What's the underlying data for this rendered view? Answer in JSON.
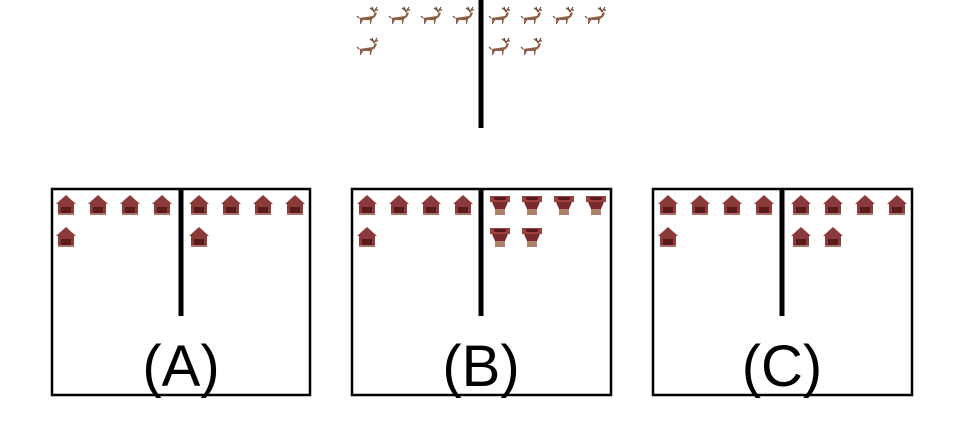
{
  "top_diagram": {
    "left_side": {
      "icon": "deer-icon",
      "count": 5
    },
    "right_side": {
      "icon": "deer-icon",
      "count": 6
    }
  },
  "options": [
    {
      "label": "(A)",
      "left_side": {
        "icon": "house-icon",
        "count": 5
      },
      "right_side": {
        "icon": "house-icon",
        "count": 5
      }
    },
    {
      "label": "(B)",
      "left_side": {
        "icon": "house-icon",
        "count": 5
      },
      "right_side": {
        "icon": "vase-icon",
        "count": 6
      }
    },
    {
      "label": "(C)",
      "left_side": {
        "icon": "house-icon",
        "count": 5
      },
      "right_side": {
        "icon": "house-icon",
        "count": 6
      }
    }
  ],
  "colors": {
    "line": "#000000",
    "deer": "#8a6048",
    "house": "#8b3a3a",
    "house_door": "#5a1a1a",
    "vase": "#9a3f3f",
    "vase_base": "#b0806a"
  }
}
